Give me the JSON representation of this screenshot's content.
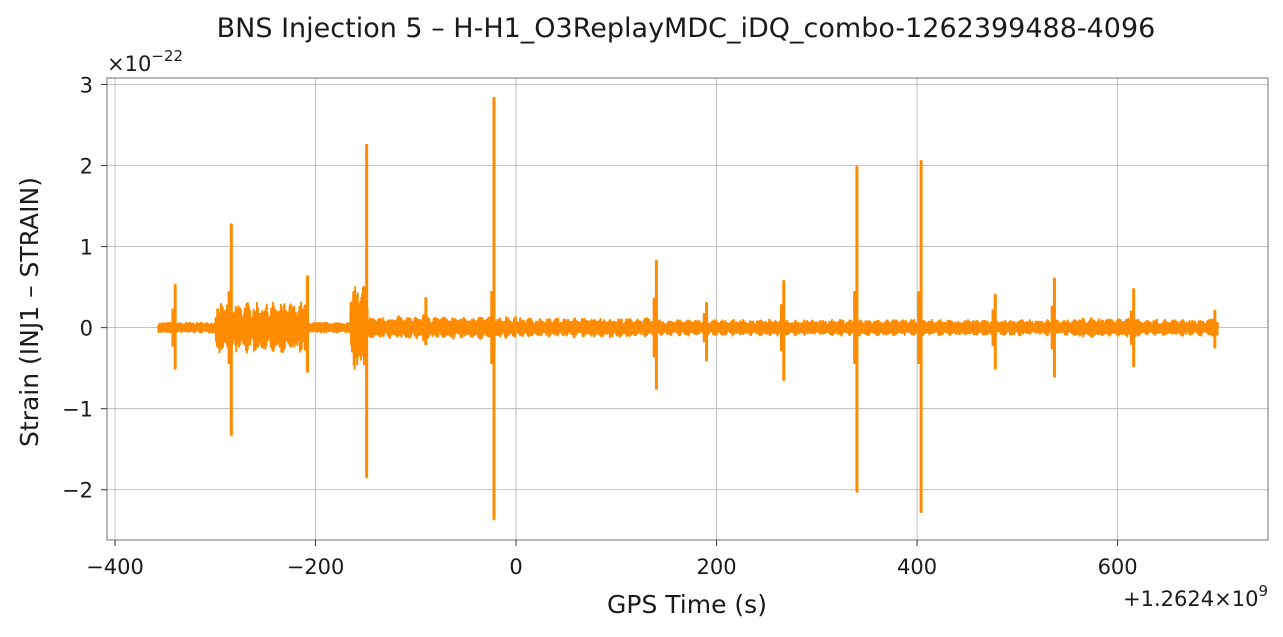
{
  "chart_data": {
    "type": "line",
    "title": "BNS Injection 5 – H-H1_O3ReplayMDC_iDQ_combo-1262399488-4096",
    "xlabel": "GPS Time (s)",
    "ylabel": "Strain (INJ1 – STRAIN)",
    "x_offset_label": "+1.2624×10",
    "x_offset_exponent": "9",
    "y_multiplier_label": "×10",
    "y_multiplier_exponent": "−22",
    "xlim": [
      -408,
      750
    ],
    "ylim": [
      -2.62,
      3.08
    ],
    "x_range": [
      -357,
      700
    ],
    "baseline_amplitude": 0.06,
    "x_ticks": [
      {
        "value": -400,
        "label": "−400"
      },
      {
        "value": -200,
        "label": "−200"
      },
      {
        "value": 0,
        "label": "0"
      },
      {
        "value": 200,
        "label": "200"
      },
      {
        "value": 400,
        "label": "400"
      },
      {
        "value": 600,
        "label": "600"
      }
    ],
    "y_ticks": [
      {
        "value": -2,
        "label": "−2"
      },
      {
        "value": -1,
        "label": "−1"
      },
      {
        "value": 0,
        "label": "0"
      },
      {
        "value": 1,
        "label": "1"
      },
      {
        "value": 2,
        "label": "2"
      },
      {
        "value": 3,
        "label": "3"
      }
    ],
    "grid": true,
    "line_color": "#ff8c00",
    "envelope_regions": [
      {
        "x_start": -300,
        "x_end": -210,
        "amplitude": 0.32
      },
      {
        "x_start": -165,
        "x_end": -148,
        "amplitude": 0.55
      },
      {
        "x_start": -148,
        "x_end": 0,
        "amplitude": 0.14
      },
      {
        "x_start": 0,
        "x_end": 140,
        "amplitude": 0.12
      },
      {
        "x_start": 140,
        "x_end": 700,
        "amplitude": 0.1
      },
      {
        "x_start": 560,
        "x_end": 620,
        "amplitude": 0.12
      }
    ],
    "glitches": [
      {
        "x": -340,
        "y_max": 0.52,
        "y_min": -0.5
      },
      {
        "x": -284,
        "y_max": 1.27,
        "y_min": -1.32
      },
      {
        "x": -208,
        "y_max": 0.63,
        "y_min": -0.54
      },
      {
        "x": -149,
        "y_max": 2.25,
        "y_min": -1.84
      },
      {
        "x": -90,
        "y_max": 0.36,
        "y_min": -0.2
      },
      {
        "x": -22,
        "y_max": 2.83,
        "y_min": -2.36
      },
      {
        "x": 140,
        "y_max": 0.82,
        "y_min": -0.75
      },
      {
        "x": 190,
        "y_max": 0.3,
        "y_min": -0.4
      },
      {
        "x": 267,
        "y_max": 0.57,
        "y_min": -0.64
      },
      {
        "x": 340,
        "y_max": 1.98,
        "y_min": -2.02
      },
      {
        "x": 404,
        "y_max": 2.05,
        "y_min": -2.27
      },
      {
        "x": 478,
        "y_max": 0.4,
        "y_min": -0.5
      },
      {
        "x": 537,
        "y_max": 0.6,
        "y_min": -0.6
      },
      {
        "x": 616,
        "y_max": 0.47,
        "y_min": -0.47
      },
      {
        "x": 697,
        "y_max": 0.2,
        "y_min": -0.24
      }
    ]
  }
}
